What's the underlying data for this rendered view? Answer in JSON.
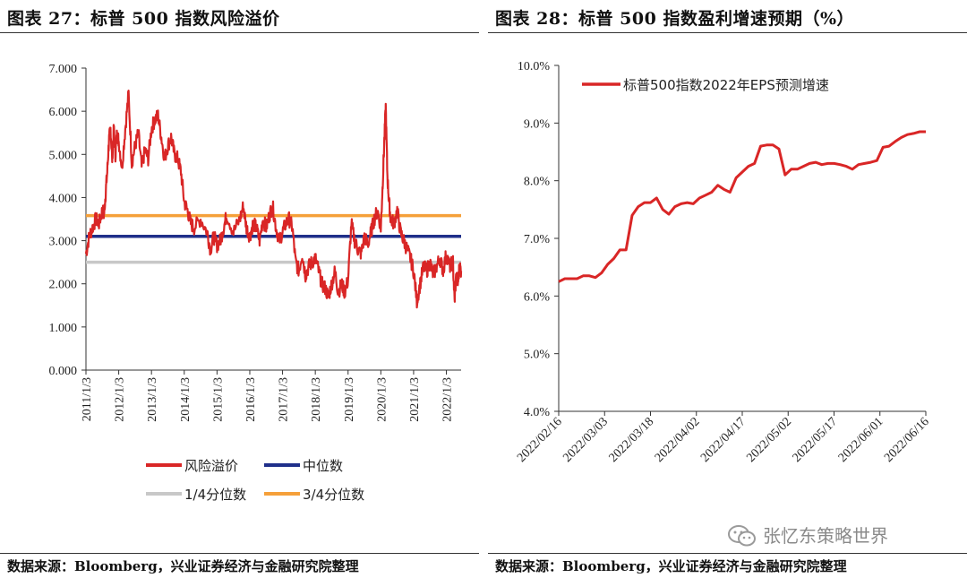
{
  "left": {
    "title": "图表 27：标普 500 指数风险溢价",
    "source": "数据来源：Bloomberg，兴业证券经济与金融研究院整理"
  },
  "right": {
    "title": "图表 28：标普 500 指数盈利增速预期（%）",
    "source": "数据来源：Bloomberg，兴业证券经济与金融研究院整理"
  },
  "watermark": {
    "text": "张忆东策略世界",
    "icon": "wechat-icon"
  },
  "chart_data": [
    {
      "type": "line",
      "title": "图表 27：标普 500 指数风险溢价",
      "ylim": [
        0,
        7
      ],
      "yticks": [
        "0.000",
        "1.000",
        "2.000",
        "3.000",
        "4.000",
        "5.000",
        "6.000",
        "7.000"
      ],
      "xticks": [
        "2011/1/3",
        "2012/1/3",
        "2013/1/3",
        "2014/1/3",
        "2015/1/3",
        "2016/1/3",
        "2017/1/3",
        "2018/1/3",
        "2019/1/3",
        "2020/1/3",
        "2021/1/3",
        "2022/1/3"
      ],
      "xlim": [
        2011.0,
        2022.45
      ],
      "grid": false,
      "legend_position": "bottom",
      "series": [
        {
          "name": "风险溢价",
          "color": "#d92626",
          "x": [
            2011.0,
            2011.1,
            2011.2,
            2011.3,
            2011.4,
            2011.5,
            2011.55,
            2011.6,
            2011.65,
            2011.7,
            2011.75,
            2011.8,
            2011.85,
            2011.9,
            2011.95,
            2012.0,
            2012.1,
            2012.2,
            2012.3,
            2012.4,
            2012.5,
            2012.6,
            2012.7,
            2012.8,
            2012.9,
            2013.0,
            2013.1,
            2013.2,
            2013.3,
            2013.4,
            2013.5,
            2013.6,
            2013.7,
            2013.8,
            2013.9,
            2014.0,
            2014.1,
            2014.2,
            2014.3,
            2014.5,
            2014.7,
            2014.8,
            2014.9,
            2015.0,
            2015.1,
            2015.2,
            2015.3,
            2015.5,
            2015.7,
            2015.8,
            2015.9,
            2016.0,
            2016.1,
            2016.2,
            2016.3,
            2016.4,
            2016.5,
            2016.6,
            2016.7,
            2016.8,
            2016.9,
            2017.0,
            2017.1,
            2017.2,
            2017.3,
            2017.4,
            2017.5,
            2017.6,
            2017.7,
            2017.8,
            2017.9,
            2018.0,
            2018.1,
            2018.2,
            2018.3,
            2018.4,
            2018.5,
            2018.6,
            2018.7,
            2018.8,
            2018.9,
            2019.0,
            2019.1,
            2019.2,
            2019.3,
            2019.4,
            2019.5,
            2019.6,
            2019.7,
            2019.8,
            2019.9,
            2020.0,
            2020.05,
            2020.1,
            2020.15,
            2020.2,
            2020.25,
            2020.3,
            2020.4,
            2020.5,
            2020.6,
            2020.7,
            2020.8,
            2020.9,
            2021.0,
            2021.1,
            2021.2,
            2021.3,
            2021.4,
            2021.5,
            2021.6,
            2021.7,
            2021.8,
            2021.9,
            2022.0,
            2022.1,
            2022.2,
            2022.25,
            2022.3,
            2022.35,
            2022.4,
            2022.45
          ],
          "y": [
            2.7,
            3.1,
            3.3,
            3.5,
            3.4,
            3.7,
            3.6,
            4.1,
            4.6,
            5.3,
            5.6,
            4.9,
            5.6,
            5.0,
            5.5,
            5.3,
            4.7,
            5.6,
            6.4,
            4.8,
            5.2,
            5.5,
            4.7,
            5.1,
            4.9,
            5.6,
            5.8,
            5.9,
            5.4,
            4.9,
            5.2,
            5.4,
            5.0,
            4.9,
            4.6,
            3.9,
            3.7,
            3.4,
            3.3,
            3.5,
            3.2,
            2.8,
            3.1,
            2.9,
            3.0,
            3.3,
            3.6,
            3.2,
            3.5,
            3.8,
            3.3,
            3.1,
            3.4,
            3.3,
            3.0,
            3.5,
            3.3,
            3.6,
            3.8,
            3.3,
            3.0,
            3.2,
            3.4,
            3.5,
            3.3,
            2.5,
            2.3,
            2.7,
            2.2,
            2.4,
            2.5,
            2.6,
            2.3,
            2.0,
            1.9,
            1.7,
            2.0,
            2.3,
            1.8,
            2.0,
            1.8,
            2.1,
            3.4,
            3.0,
            2.8,
            2.7,
            3.1,
            2.9,
            3.2,
            3.5,
            3.7,
            3.3,
            4.2,
            5.2,
            6.1,
            4.5,
            3.9,
            3.5,
            3.4,
            3.7,
            3.2,
            3.0,
            2.8,
            2.6,
            2.3,
            1.6,
            2.0,
            2.4,
            2.3,
            2.5,
            2.2,
            2.4,
            2.6,
            2.3,
            2.7,
            2.4,
            2.5,
            1.6,
            2.2,
            2.0,
            2.4,
            2.3
          ]
        },
        {
          "name": "中位数",
          "color": "#1f2f8a",
          "value": 3.1
        },
        {
          "name": "1/4分位数",
          "color": "#c8c8c8",
          "value": 2.5
        },
        {
          "name": "3/4分位数",
          "color": "#f5a03a",
          "value": 3.58
        }
      ]
    },
    {
      "type": "line",
      "title": "图表 28：标普 500 指数盈利增速预期（%）",
      "ylim": [
        4.0,
        10.0
      ],
      "yticks": [
        "4.0%",
        "5.0%",
        "6.0%",
        "7.0%",
        "8.0%",
        "9.0%",
        "10.0%"
      ],
      "xticks": [
        "2022/02/16",
        "2022/03/03",
        "2022/03/18",
        "2022/04/02",
        "2022/04/17",
        "2022/05/02",
        "2022/05/17",
        "2022/06/01",
        "2022/06/16"
      ],
      "xlim": [
        "2022/02/16",
        "2022/06/16"
      ],
      "grid": false,
      "legend_position": "top-left",
      "series": [
        {
          "name": "标普500指数2022年EPS预测增速",
          "color": "#d92626",
          "x": [
            "2022/02/16",
            "2022/02/18",
            "2022/02/22",
            "2022/02/24",
            "2022/02/26",
            "2022/02/28",
            "2022/03/02",
            "2022/03/04",
            "2022/03/06",
            "2022/03/08",
            "2022/03/10",
            "2022/03/12",
            "2022/03/14",
            "2022/03/16",
            "2022/03/18",
            "2022/03/20",
            "2022/03/22",
            "2022/03/24",
            "2022/03/26",
            "2022/03/28",
            "2022/03/30",
            "2022/04/01",
            "2022/04/03",
            "2022/04/05",
            "2022/04/07",
            "2022/04/09",
            "2022/04/11",
            "2022/04/13",
            "2022/04/15",
            "2022/04/17",
            "2022/04/19",
            "2022/04/21",
            "2022/04/23",
            "2022/04/25",
            "2022/04/27",
            "2022/04/29",
            "2022/05/01",
            "2022/05/03",
            "2022/05/05",
            "2022/05/07",
            "2022/05/09",
            "2022/05/11",
            "2022/05/13",
            "2022/05/15",
            "2022/05/17",
            "2022/05/19",
            "2022/05/21",
            "2022/05/23",
            "2022/05/25",
            "2022/05/27",
            "2022/05/29",
            "2022/05/31",
            "2022/06/02",
            "2022/06/04",
            "2022/06/06",
            "2022/06/08",
            "2022/06/10",
            "2022/06/12",
            "2022/06/14",
            "2022/06/16"
          ],
          "y": [
            6.25,
            6.3,
            6.3,
            6.35,
            6.35,
            6.32,
            6.4,
            6.55,
            6.65,
            6.8,
            6.8,
            7.4,
            7.55,
            7.62,
            7.62,
            7.7,
            7.5,
            7.42,
            7.55,
            7.6,
            7.62,
            7.6,
            7.7,
            7.75,
            7.8,
            7.92,
            7.85,
            7.8,
            8.05,
            8.15,
            8.25,
            8.3,
            8.6,
            8.62,
            8.62,
            8.55,
            8.1,
            8.2,
            8.2,
            8.25,
            8.3,
            8.32,
            8.28,
            8.3,
            8.3,
            8.28,
            8.25,
            8.2,
            8.28,
            8.3,
            8.32,
            8.35,
            8.58,
            8.6,
            8.68,
            8.75,
            8.8,
            8.82,
            8.85,
            8.85
          ]
        }
      ]
    }
  ]
}
